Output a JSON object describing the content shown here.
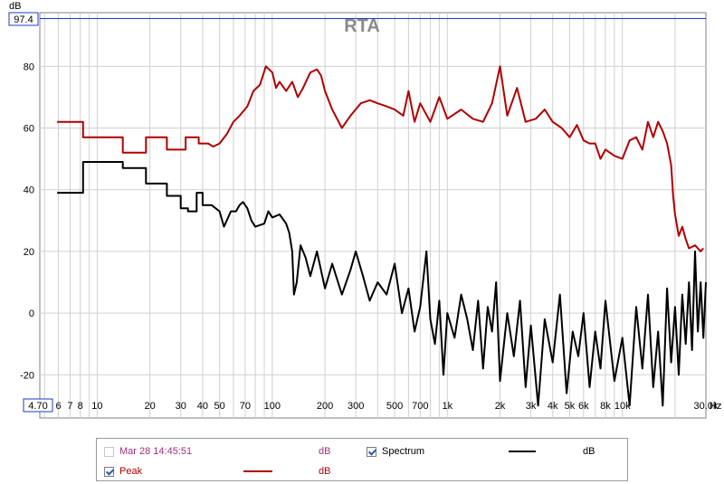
{
  "chart_data": {
    "type": "line",
    "title": "RTA",
    "ylabel": "dB",
    "xunit": "Hz",
    "xscale": "log",
    "xlim": [
      4.7,
      30000
    ],
    "ylim": [
      -34,
      97.4
    ],
    "ymax_label": "97.4",
    "xmin_label": "4.70",
    "yticks": [
      80,
      60,
      40,
      20,
      0,
      -20
    ],
    "xticks": [
      {
        "v": 6,
        "label": "6"
      },
      {
        "v": 7,
        "label": "7"
      },
      {
        "v": 8,
        "label": "8"
      },
      {
        "v": 10,
        "label": "10"
      },
      {
        "v": 20,
        "label": "20"
      },
      {
        "v": 30,
        "label": "30"
      },
      {
        "v": 40,
        "label": "40"
      },
      {
        "v": 50,
        "label": "50"
      },
      {
        "v": 70,
        "label": "70"
      },
      {
        "v": 100,
        "label": "100"
      },
      {
        "v": 200,
        "label": "200"
      },
      {
        "v": 300,
        "label": "300"
      },
      {
        "v": 500,
        "label": "500"
      },
      {
        "v": 700,
        "label": "700"
      },
      {
        "v": 1000,
        "label": "1k"
      },
      {
        "v": 2000,
        "label": "2k"
      },
      {
        "v": 3000,
        "label": "3k"
      },
      {
        "v": 4000,
        "label": "4k"
      },
      {
        "v": 5000,
        "label": "5k"
      },
      {
        "v": 6000,
        "label": "6k"
      },
      {
        "v": 8000,
        "label": "8k"
      },
      {
        "v": 10000,
        "label": "10k"
      },
      {
        "v": 30000,
        "label": "30.0k"
      }
    ],
    "grid": true,
    "series": [
      {
        "name": "Peak",
        "color": "#b00000",
        "points": [
          [
            5.9,
            62
          ],
          [
            8.3,
            62
          ],
          [
            8.3,
            57
          ],
          [
            14,
            57
          ],
          [
            14,
            52
          ],
          [
            19,
            52
          ],
          [
            19,
            57
          ],
          [
            25,
            57
          ],
          [
            25,
            53
          ],
          [
            32,
            53
          ],
          [
            32,
            57
          ],
          [
            38,
            57
          ],
          [
            38,
            55
          ],
          [
            43,
            55
          ],
          [
            43,
            55
          ],
          [
            46,
            54
          ],
          [
            50,
            55
          ],
          [
            55,
            58
          ],
          [
            60,
            62
          ],
          [
            65,
            64
          ],
          [
            72,
            67
          ],
          [
            78,
            72
          ],
          [
            85,
            74
          ],
          [
            92,
            80
          ],
          [
            100,
            78
          ],
          [
            105,
            73
          ],
          [
            110,
            75
          ],
          [
            120,
            72
          ],
          [
            130,
            75
          ],
          [
            140,
            70
          ],
          [
            150,
            73
          ],
          [
            165,
            78
          ],
          [
            180,
            79
          ],
          [
            190,
            77
          ],
          [
            200,
            72
          ],
          [
            220,
            66
          ],
          [
            250,
            60
          ],
          [
            280,
            64
          ],
          [
            320,
            68
          ],
          [
            360,
            69
          ],
          [
            400,
            68
          ],
          [
            450,
            67
          ],
          [
            500,
            66
          ],
          [
            560,
            64
          ],
          [
            600,
            72
          ],
          [
            650,
            62
          ],
          [
            700,
            68
          ],
          [
            800,
            62
          ],
          [
            900,
            70
          ],
          [
            1000,
            63
          ],
          [
            1200,
            66
          ],
          [
            1400,
            63
          ],
          [
            1600,
            62
          ],
          [
            1800,
            68
          ],
          [
            2000,
            80
          ],
          [
            2200,
            64
          ],
          [
            2500,
            73
          ],
          [
            2800,
            62
          ],
          [
            3200,
            63
          ],
          [
            3600,
            66
          ],
          [
            4000,
            62
          ],
          [
            4500,
            60
          ],
          [
            5000,
            57
          ],
          [
            5500,
            61
          ],
          [
            6000,
            56
          ],
          [
            6500,
            55
          ],
          [
            7000,
            55
          ],
          [
            7500,
            50
          ],
          [
            8000,
            53
          ],
          [
            9000,
            51
          ],
          [
            10000,
            50
          ],
          [
            11000,
            56
          ],
          [
            12000,
            57
          ],
          [
            13000,
            53
          ],
          [
            14000,
            62
          ],
          [
            15000,
            57
          ],
          [
            16000,
            62
          ],
          [
            17000,
            59
          ],
          [
            18000,
            55
          ],
          [
            19000,
            48
          ],
          [
            19500,
            38
          ],
          [
            20000,
            32
          ],
          [
            21000,
            25
          ],
          [
            22000,
            28
          ],
          [
            23000,
            24
          ],
          [
            24000,
            21
          ],
          [
            26000,
            22
          ],
          [
            28000,
            20
          ],
          [
            29000,
            21
          ]
        ]
      },
      {
        "name": "Spectrum",
        "color": "#000000",
        "points": [
          [
            5.9,
            39
          ],
          [
            8.3,
            39
          ],
          [
            8.3,
            49
          ],
          [
            14,
            49
          ],
          [
            14,
            47
          ],
          [
            19,
            47
          ],
          [
            19,
            42
          ],
          [
            25,
            42
          ],
          [
            25,
            38
          ],
          [
            30,
            38
          ],
          [
            30,
            34
          ],
          [
            33,
            34
          ],
          [
            33,
            33
          ],
          [
            37,
            33
          ],
          [
            37,
            39
          ],
          [
            40,
            39
          ],
          [
            40,
            35
          ],
          [
            45,
            35
          ],
          [
            50,
            33
          ],
          [
            53,
            28
          ],
          [
            58,
            33
          ],
          [
            62,
            33
          ],
          [
            65,
            35
          ],
          [
            68,
            36
          ],
          [
            72,
            34
          ],
          [
            76,
            30
          ],
          [
            80,
            28
          ],
          [
            90,
            29
          ],
          [
            95,
            33
          ],
          [
            100,
            31
          ],
          [
            110,
            32
          ],
          [
            120,
            29
          ],
          [
            125,
            26
          ],
          [
            130,
            20
          ],
          [
            133,
            6
          ],
          [
            138,
            10
          ],
          [
            145,
            22
          ],
          [
            155,
            18
          ],
          [
            165,
            12
          ],
          [
            180,
            20
          ],
          [
            200,
            8
          ],
          [
            220,
            16
          ],
          [
            250,
            6
          ],
          [
            280,
            14
          ],
          [
            300,
            20
          ],
          [
            330,
            12
          ],
          [
            360,
            4
          ],
          [
            400,
            10
          ],
          [
            450,
            6
          ],
          [
            500,
            16
          ],
          [
            550,
            0
          ],
          [
            600,
            8
          ],
          [
            650,
            -6
          ],
          [
            700,
            2
          ],
          [
            760,
            20
          ],
          [
            800,
            -2
          ],
          [
            850,
            -10
          ],
          [
            900,
            4
          ],
          [
            950,
            -20
          ],
          [
            1000,
            0
          ],
          [
            1100,
            -8
          ],
          [
            1200,
            6
          ],
          [
            1300,
            -2
          ],
          [
            1400,
            -12
          ],
          [
            1500,
            4
          ],
          [
            1600,
            -18
          ],
          [
            1700,
            2
          ],
          [
            1800,
            -6
          ],
          [
            1900,
            10
          ],
          [
            2000,
            -22
          ],
          [
            2200,
            0
          ],
          [
            2400,
            -14
          ],
          [
            2600,
            4
          ],
          [
            2800,
            -24
          ],
          [
            3000,
            -4
          ],
          [
            3300,
            -30
          ],
          [
            3600,
            -2
          ],
          [
            4000,
            -16
          ],
          [
            4400,
            6
          ],
          [
            4800,
            -26
          ],
          [
            5200,
            -6
          ],
          [
            5600,
            -14
          ],
          [
            6000,
            0
          ],
          [
            6500,
            -24
          ],
          [
            7000,
            -6
          ],
          [
            7500,
            -18
          ],
          [
            8000,
            4
          ],
          [
            9000,
            -22
          ],
          [
            10000,
            -8
          ],
          [
            11000,
            -30
          ],
          [
            12000,
            2
          ],
          [
            13000,
            -18
          ],
          [
            14000,
            6
          ],
          [
            15000,
            -24
          ],
          [
            16000,
            -6
          ],
          [
            17000,
            -30
          ],
          [
            18000,
            8
          ],
          [
            19000,
            -16
          ],
          [
            20000,
            2
          ],
          [
            21000,
            -20
          ],
          [
            22000,
            6
          ],
          [
            23000,
            -10
          ],
          [
            24000,
            10
          ],
          [
            25000,
            -12
          ],
          [
            26000,
            20
          ],
          [
            27000,
            -6
          ],
          [
            28000,
            10
          ],
          [
            29000,
            -8
          ],
          [
            30000,
            10
          ]
        ]
      }
    ]
  },
  "legend": {
    "item1": {
      "label": "Mar 28 14:45:51",
      "unit": "dB",
      "checked": false,
      "color": "#a0307a"
    },
    "item2": {
      "label": "Spectrum",
      "unit": "dB",
      "checked": true,
      "color": "#000000"
    },
    "item3": {
      "label": "Peak",
      "unit": "dB",
      "checked": true,
      "color": "#b00000"
    }
  }
}
